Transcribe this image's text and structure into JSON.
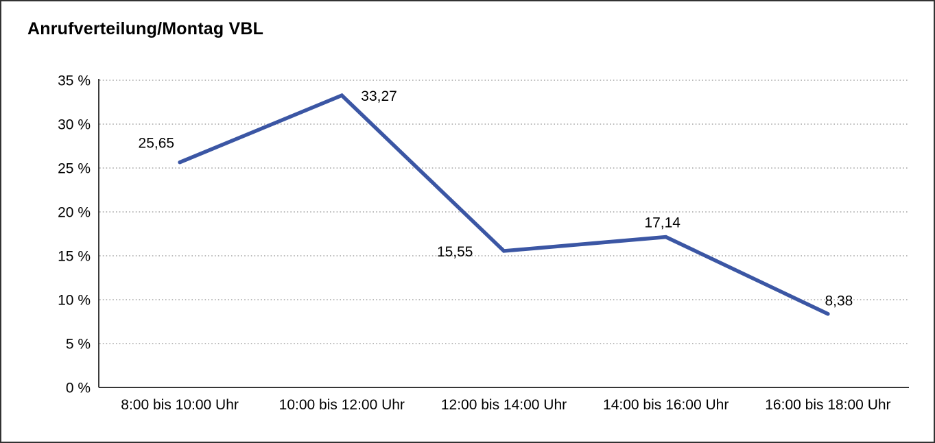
{
  "window": {
    "background": "#ffffff",
    "border_color": "#333333"
  },
  "header": {
    "title": "Anrufverteilung/Montag VBL"
  },
  "chart_data": {
    "type": "line",
    "title": "Anrufverteilung/Montag VBL",
    "categories": [
      "8:00 bis 10:00 Uhr",
      "10:00 bis 12:00 Uhr",
      "12:00 bis 14:00 Uhr",
      "14:00 bis 16:00 Uhr",
      "16:00 bis 18:00 Uhr"
    ],
    "series": [
      {
        "name": "Anrufverteilung Montag VBL",
        "values": [
          25.65,
          33.27,
          15.55,
          17.14,
          8.38
        ],
        "color": "#3b56a4"
      }
    ],
    "point_labels": [
      "25,65",
      "33,27",
      "15,55",
      "17,14",
      "8,38"
    ],
    "xlabel": "",
    "ylabel": "",
    "ylim": [
      0,
      35
    ],
    "ytick_values": [
      35,
      30,
      25,
      20,
      15,
      10,
      5,
      0
    ],
    "ytick_labels": [
      "35 %",
      "30 %",
      "25 %",
      "20 %",
      "15 %",
      "10 %",
      "5 %",
      "0 %"
    ],
    "grid": "horizontal-dotted",
    "gridline_color": "#909090",
    "axis_color": "#1a1a1a",
    "legend_position": "none",
    "label_placements": [
      "above-left",
      "right",
      "left",
      "above",
      "above-right"
    ]
  }
}
